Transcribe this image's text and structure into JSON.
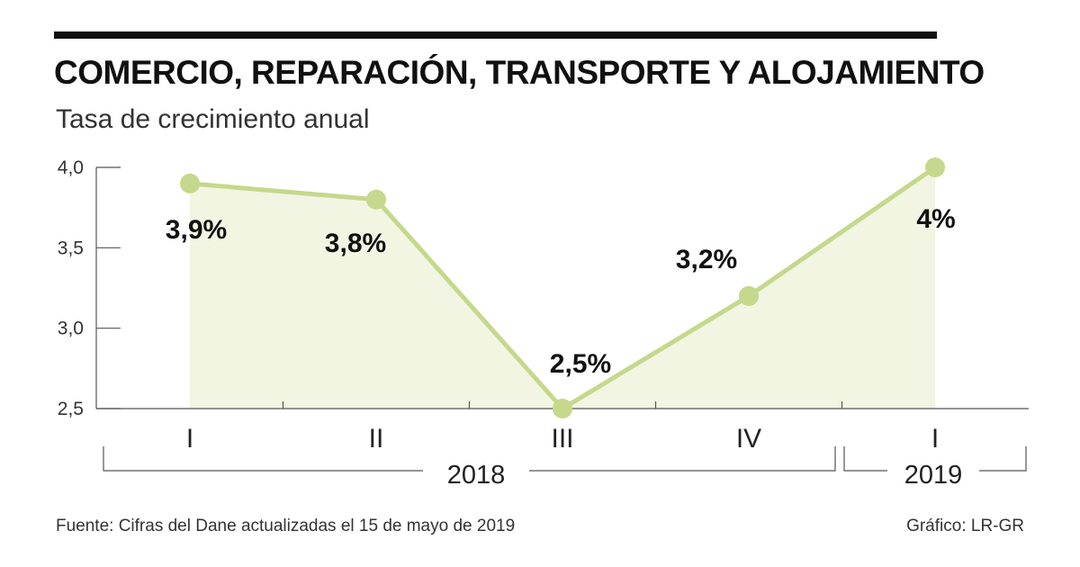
{
  "chart_data": {
    "type": "line",
    "title": "COMERCIO, REPARACIÓN, TRANSPORTE Y ALOJAMIENTO",
    "subtitle": "Tasa de crecimiento anual",
    "categories": [
      "I",
      "II",
      "III",
      "IV",
      "I"
    ],
    "values": [
      3.9,
      3.8,
      2.5,
      3.2,
      4.0
    ],
    "data_labels": [
      "3,9%",
      "3,8%",
      "2,5%",
      "3,2%",
      "4%"
    ],
    "y_ticks": [
      "4,0",
      "3,5",
      "3,0",
      "2,5"
    ],
    "y_tick_values": [
      4.0,
      3.5,
      3.0,
      2.5
    ],
    "ylim": [
      2.5,
      4.0
    ],
    "year_groups": [
      {
        "label": "2018",
        "from_index": 0,
        "to_index": 3
      },
      {
        "label": "2019",
        "from_index": 4,
        "to_index": 4
      }
    ],
    "xlabel": "",
    "ylabel": "",
    "grid": false
  },
  "colors": {
    "line": "#c5d88c",
    "marker": "#c5d88c",
    "area": "#f1f5e2",
    "axis": "#555555",
    "text": "#111111"
  },
  "footer": {
    "source": "Fuente: Cifras del Dane actualizadas el 15 de mayo de 2019",
    "credit": "Gráfico: LR-GR"
  }
}
